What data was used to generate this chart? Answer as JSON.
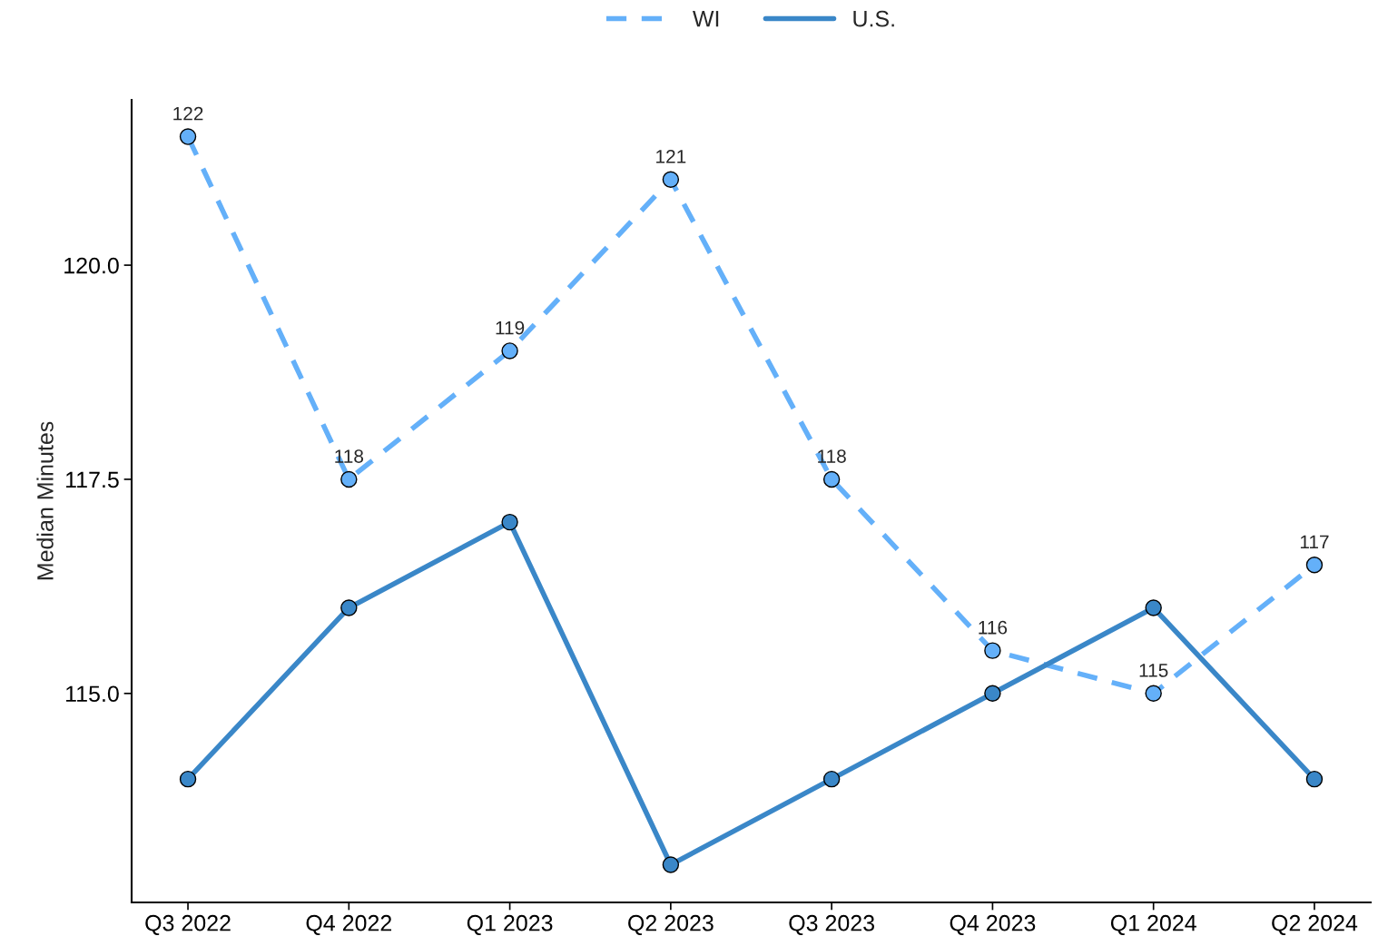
{
  "chart_data": {
    "type": "line",
    "ylabel": "Median Minutes",
    "categories": [
      "Q3 2022",
      "Q4 2022",
      "Q1 2023",
      "Q2 2023",
      "Q3 2023",
      "Q4 2023",
      "Q1 2024",
      "Q2 2024"
    ],
    "series": [
      {
        "name": "WI",
        "color": "#64b0f9",
        "line_style": "dashed",
        "values": [
          121.5,
          117.5,
          119.0,
          121.0,
          117.5,
          115.5,
          115.0,
          116.5
        ],
        "value_labels": [
          "122",
          "118",
          "119",
          "121",
          "118",
          "116",
          "115",
          "117"
        ]
      },
      {
        "name": "U.S.",
        "color": "#3a87c8",
        "line_style": "solid",
        "values": [
          114.0,
          116.0,
          117.0,
          113.0,
          114.0,
          115.0,
          116.0,
          114.0
        ]
      }
    ],
    "ylim": [
      112.56,
      121.93
    ],
    "yticks": [
      {
        "value": 115,
        "label": "115.0"
      },
      {
        "value": 117.5,
        "label": "117.5"
      },
      {
        "value": 120,
        "label": "120.0"
      }
    ],
    "marker": "circle",
    "legend": "top",
    "grid": false
  }
}
